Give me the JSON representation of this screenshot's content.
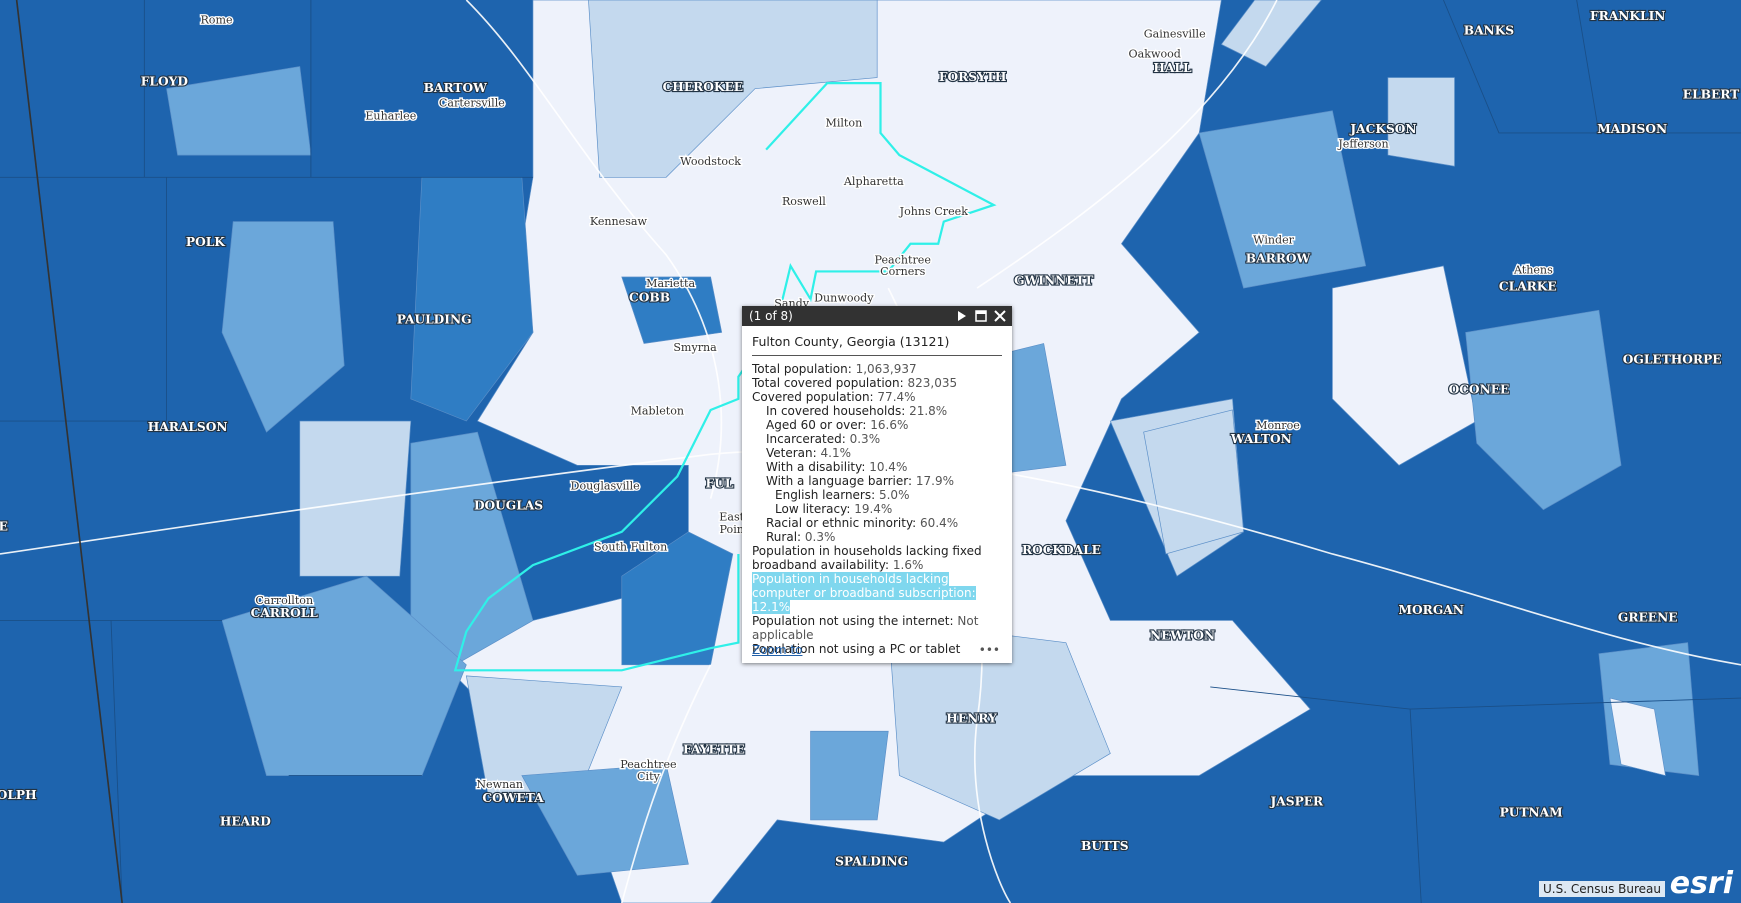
{
  "map": {
    "labels": [
      "Rome",
      "FLOYD",
      "BARTOW",
      "Cartersville",
      "Euharlee",
      "CHEROKEE",
      "FORSYTH",
      "Gainesville",
      "Oakwood",
      "HALL",
      "BANKS",
      "FRANKLIN",
      "ELBERT",
      "MADISON",
      "JACKSON",
      "Jefferson",
      "Milton",
      "Woodstock",
      "Alpharetta",
      "Roswell",
      "Johns Creek",
      "Kennesaw",
      "POLK",
      "Winder",
      "BARROW",
      "Peachtree",
      "Corners",
      "Marietta",
      "COBB",
      "GWINNETT",
      "Athens",
      "CLARKE",
      "Sandy",
      "Dunwoody",
      "PAULDING",
      "Smyrna",
      "OGLETHORPE",
      "OCONEE",
      "Mableton",
      "Monroe",
      "WALTON",
      "HARALSON",
      "Douglasville",
      "FUL",
      "DOUGLAS",
      "South Fulton",
      "ROCKDALE",
      "Carrollton",
      "CARROLL",
      "MORGAN",
      "GREENE",
      "NEWTON",
      "HENRY",
      "FAYETTE",
      "Peachtree",
      "City",
      "Newnan",
      "COWETA",
      "JASPER",
      "PUTNAM",
      "HEARD",
      "SPALDING",
      "BUTTS",
      "OLPH",
      "E",
      "East",
      "Poin"
    ]
  },
  "popup": {
    "pager": "(1 of 8)",
    "title": "Fulton County, Georgia (13121)",
    "rows": [
      {
        "label": "Total population:",
        "value": "1,063,937"
      },
      {
        "label": "Total covered population:",
        "value": "823,035"
      },
      {
        "label": "Covered population:",
        "value": "77.4%"
      },
      {
        "label": "In covered households:",
        "value": "21.8%"
      },
      {
        "label": "Aged 60 or over:",
        "value": "16.6%"
      },
      {
        "label": "Incarcerated:",
        "value": "0.3%"
      },
      {
        "label": "Veteran:",
        "value": "4.1%"
      },
      {
        "label": "With a disability:",
        "value": "10.4%"
      },
      {
        "label": "With a language barrier:",
        "value": "17.9%"
      },
      {
        "label": "English learners:",
        "value": "5.0%"
      },
      {
        "label": "Low literacy:",
        "value": "19.4%"
      },
      {
        "label": "Racial or ethnic minority:",
        "value": "60.4%"
      },
      {
        "label": "Rural:",
        "value": "0.3%"
      },
      {
        "label": "Population in households lacking fixed broadband availability:",
        "value": "1.6%"
      },
      {
        "label": "Population in households lacking computer or broadband subscription:",
        "value": "12.1%"
      },
      {
        "label": "Population not using the internet:",
        "value": "Not applicable"
      },
      {
        "label": "Population not using a PC or tablet"
      }
    ],
    "zoom": "Zoom to"
  },
  "attribution": "U.S. Census Bureau",
  "logo": "esri"
}
